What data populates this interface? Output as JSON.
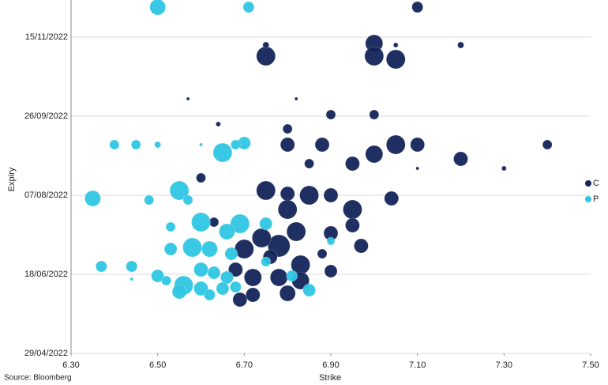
{
  "chart_data": {
    "type": "scatter",
    "x_label": "Strike",
    "y_label": "Expiry",
    "source": "Source: Bloomberg",
    "xlim": [
      6.3,
      7.5
    ],
    "xticks": [
      {
        "value": 6.3,
        "label": "6.30"
      },
      {
        "value": 6.5,
        "label": "6.50"
      },
      {
        "value": 6.7,
        "label": "6.70"
      },
      {
        "value": 6.9,
        "label": "6.90"
      },
      {
        "value": 7.1,
        "label": "7.10"
      },
      {
        "value": 7.3,
        "label": "7.30"
      },
      {
        "value": 7.5,
        "label": "7.50"
      }
    ],
    "ylim": [
      "2022-04-29",
      "2022-12-05"
    ],
    "yticks": [
      {
        "value": "2022-04-29",
        "label": "29/04/2022"
      },
      {
        "value": "2022-06-18",
        "label": "18/06/2022"
      },
      {
        "value": "2022-08-07",
        "label": "07/08/2022"
      },
      {
        "value": "2022-09-26",
        "label": "26/09/2022"
      },
      {
        "value": "2022-11-15",
        "label": "15/11/2022"
      }
    ],
    "grid": true,
    "legend": "right",
    "series": [
      {
        "name": "C",
        "color": "#13245a",
        "x": [
          7.1,
          7.0,
          7.0,
          7.05,
          6.75,
          6.75,
          7.05,
          7.2,
          6.9,
          7.0,
          6.8,
          6.8,
          6.88,
          7.05,
          7.1,
          7.4,
          7.0,
          6.95,
          7.2,
          6.85,
          6.75,
          6.8,
          6.85,
          6.9,
          6.95,
          7.04,
          6.8,
          6.82,
          6.9,
          6.95,
          6.78,
          6.74,
          6.7,
          6.83,
          6.97,
          6.88,
          6.9,
          6.78,
          6.72,
          6.83,
          6.8,
          6.72,
          6.69,
          6.6,
          6.63,
          6.68,
          6.76,
          7.1,
          7.3,
          6.64,
          6.57,
          6.82
        ],
        "y": [
          "2022-12-04",
          "2022-11-11",
          "2022-11-03",
          "2022-11-01",
          "2022-11-03",
          "2022-11-10",
          "2022-11-10",
          "2022-11-10",
          "2022-09-27",
          "2022-09-27",
          "2022-09-18",
          "2022-09-08",
          "2022-09-08",
          "2022-09-08",
          "2022-09-08",
          "2022-09-08",
          "2022-09-02",
          "2022-08-27",
          "2022-08-30",
          "2022-08-27",
          "2022-08-10",
          "2022-08-08",
          "2022-08-07",
          "2022-08-07",
          "2022-07-29",
          "2022-08-05",
          "2022-07-29",
          "2022-07-15",
          "2022-07-14",
          "2022-07-19",
          "2022-07-06",
          "2022-07-11",
          "2022-07-04",
          "2022-06-24",
          "2022-07-06",
          "2022-07-01",
          "2022-06-20",
          "2022-06-16",
          "2022-06-16",
          "2022-06-14",
          "2022-06-06",
          "2022-06-05",
          "2022-06-02",
          "2022-08-18",
          "2022-07-21",
          "2022-06-21",
          "2022-06-29",
          "2022-08-24",
          "2022-08-24",
          "2022-09-21",
          "2022-10-07",
          "2022-10-07"
        ],
        "sizes": [
          7,
          11,
          12,
          12,
          12,
          4,
          3,
          4,
          6,
          6,
          6,
          9,
          9,
          12,
          9,
          6,
          11,
          9,
          9,
          6,
          12,
          9,
          12,
          9,
          12,
          9,
          12,
          12,
          9,
          9,
          14,
          12,
          12,
          12,
          9,
          6,
          8,
          11,
          11,
          11,
          10,
          9,
          9,
          6,
          6,
          9,
          9,
          2,
          3,
          3,
          2,
          2
        ]
      },
      {
        "name": "P",
        "color": "#2fc6e3",
        "x": [
          6.5,
          6.71,
          6.4,
          6.45,
          6.5,
          6.65,
          6.7,
          6.68,
          6.35,
          6.48,
          6.55,
          6.57,
          6.6,
          6.69,
          6.66,
          6.53,
          6.53,
          6.58,
          6.62,
          6.67,
          6.37,
          6.44,
          6.5,
          6.52,
          6.56,
          6.6,
          6.63,
          6.66,
          6.6,
          6.65,
          6.62,
          6.68,
          6.75,
          6.75,
          6.81,
          6.85,
          6.9,
          6.55,
          6.44,
          6.6
        ],
        "y": [
          "2022-12-04",
          "2022-12-04",
          "2022-09-08",
          "2022-09-08",
          "2022-09-08",
          "2022-09-03",
          "2022-09-09",
          "2022-09-08",
          "2022-08-05",
          "2022-08-04",
          "2022-08-10",
          "2022-08-04",
          "2022-07-21",
          "2022-07-20",
          "2022-07-15",
          "2022-07-18",
          "2022-07-04",
          "2022-07-05",
          "2022-07-04",
          "2022-07-01",
          "2022-06-23",
          "2022-06-23",
          "2022-06-17",
          "2022-06-14",
          "2022-06-11",
          "2022-06-21",
          "2022-06-19",
          "2022-06-16",
          "2022-06-09",
          "2022-06-09",
          "2022-06-05",
          "2022-06-10",
          "2022-07-20",
          "2022-06-26",
          "2022-06-17",
          "2022-06-08",
          "2022-07-09",
          "2022-06-07",
          "2022-06-15",
          "2022-09-08"
        ],
        "sizes": [
          10,
          7,
          6,
          6,
          4,
          12,
          8,
          6,
          10,
          6,
          12,
          6,
          12,
          12,
          10,
          6,
          8,
          12,
          10,
          8,
          7,
          7,
          8,
          6,
          12,
          9,
          8,
          8,
          9,
          8,
          7,
          7,
          8,
          6,
          7,
          8,
          5,
          9,
          2,
          2
        ]
      }
    ]
  }
}
